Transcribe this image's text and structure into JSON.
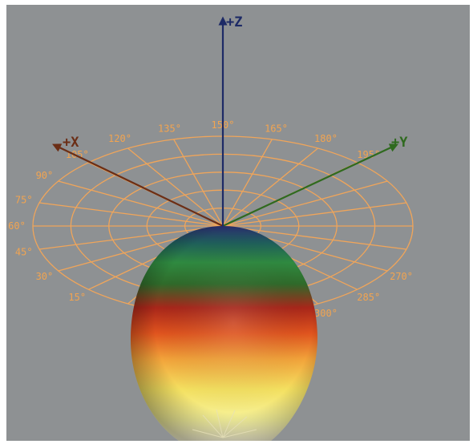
{
  "colors": {
    "background": "#8e9193",
    "grid": "#f0a55a",
    "axis_x": "#6b2e16",
    "axis_y": "#2f6a1f",
    "axis_z": "#1d2a66"
  },
  "axes": {
    "x": {
      "label": "+X"
    },
    "y": {
      "label": "+Y"
    },
    "z": {
      "label": "+Z"
    }
  },
  "polar_grid": {
    "rings": 5,
    "spokes": 24,
    "degree_labels": [
      {
        "text": "15°",
        "az": 15
      },
      {
        "text": "30°",
        "az": 30
      },
      {
        "text": "45°",
        "az": 45
      },
      {
        "text": "60°",
        "az": 60
      },
      {
        "text": "75°",
        "az": 75
      },
      {
        "text": "90°",
        "az": 90
      },
      {
        "text": "105°",
        "az": 105
      },
      {
        "text": "120°",
        "az": 120
      },
      {
        "text": "135°",
        "az": 135
      },
      {
        "text": "150°",
        "az": 150
      },
      {
        "text": "165°",
        "az": 165
      },
      {
        "text": "180°",
        "az": 180
      },
      {
        "text": "195°",
        "az": 195
      },
      {
        "text": "270°",
        "az": 270
      },
      {
        "text": "285°",
        "az": 285
      },
      {
        "text": "300°",
        "az": 300
      },
      {
        "text": "315°",
        "az": 315
      },
      {
        "text": "330°",
        "az": 330
      },
      {
        "text": "345°",
        "az": 345
      }
    ]
  },
  "radiation_pattern": {
    "shape": "ellipsoidal-lobe",
    "colormap": [
      "#2a2f70",
      "#2f8a40",
      "#c22a1a",
      "#f08a20",
      "#f6e86a",
      "#fbf6c8"
    ]
  }
}
